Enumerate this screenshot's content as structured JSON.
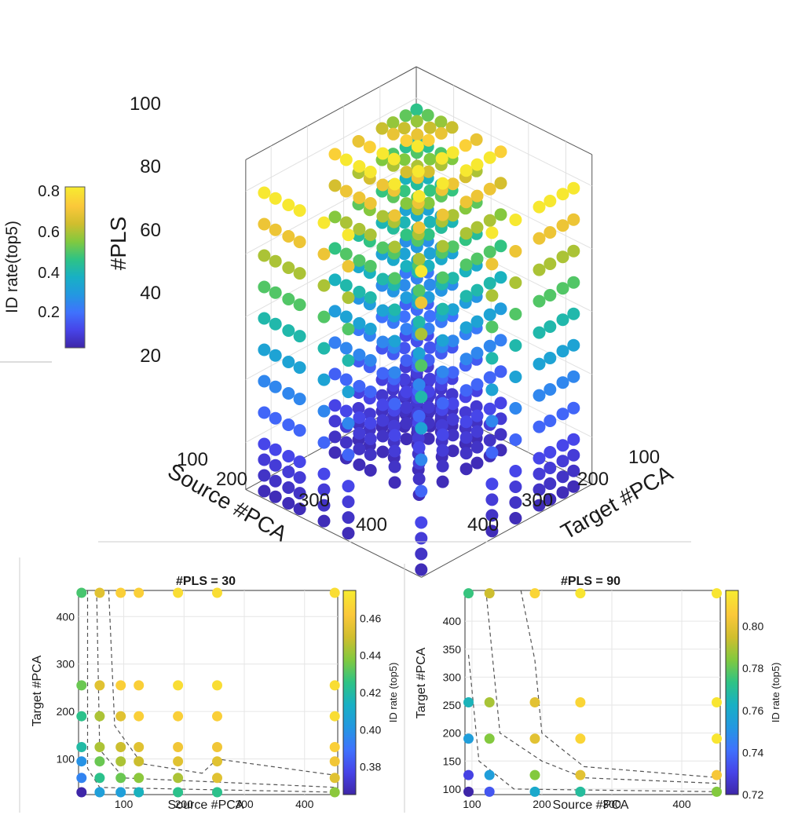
{
  "colormap": [
    "#3e26a8",
    "#4744e8",
    "#3f72fd",
    "#2398e1",
    "#18b0c4",
    "#2ec385",
    "#81c93f",
    "#d0be2e",
    "#fbc83a",
    "#f7ec2f"
  ],
  "main_3d": {
    "zlabel": "#PLS",
    "xlabel": "Source #PCA",
    "ylabel": "Target #PCA",
    "z_ticks": [
      "20",
      "40",
      "60",
      "80",
      "100"
    ],
    "x_ticks": [
      "100",
      "200",
      "300",
      "400"
    ],
    "y_ticks": [
      "100",
      "200",
      "300",
      "400"
    ],
    "colorbar": {
      "label": "ID rate(top5)",
      "ticks": [
        "0.2",
        "0.4",
        "0.6",
        "0.8"
      ]
    }
  },
  "chart_data": [
    {
      "type": "scatter",
      "title": "",
      "xlabel": "Source #PCA",
      "ylabel": "Target #PCA",
      "zlabel": "#PLS",
      "description_values": "3D scatter of ID rate(top5) over Source #PCA, Target #PCA and #PLS",
      "x_values": [
        30,
        60,
        95,
        125,
        190,
        255,
        450
      ],
      "y_values": [
        30,
        60,
        95,
        125,
        190,
        255,
        450
      ],
      "z_values": [
        5,
        10,
        15,
        20,
        30,
        40,
        50,
        60,
        70,
        80,
        90,
        100
      ],
      "colorbar": {
        "label": "ID rate(top5)",
        "range": [
          0.02,
          0.82
        ],
        "ticks": [
          0.2,
          0.4,
          0.6,
          0.8
        ]
      },
      "zlim": [
        0,
        100
      ]
    },
    {
      "type": "scatter",
      "title": "#PLS = 30",
      "xlabel": "Source #PCA",
      "ylabel": "Target #PCA",
      "x_ticks": [
        "100",
        "200",
        "300",
        "400"
      ],
      "y_ticks": [
        "100",
        "200",
        "300",
        "400"
      ],
      "xlim": [
        25,
        455
      ],
      "ylim": [
        25,
        455
      ],
      "grid": true,
      "colorbar": {
        "label": "ID rate (top5)",
        "range": [
          0.365,
          0.475
        ],
        "ticks": [
          "0.38",
          "0.40",
          "0.42",
          "0.44",
          "0.46"
        ]
      },
      "x": [
        30,
        60,
        95,
        125,
        190,
        255,
        450
      ],
      "y": [
        30,
        60,
        95,
        125,
        190,
        255,
        450
      ],
      "values": [
        [
          0.365,
          0.405,
          0.405,
          0.415,
          0.425,
          0.425,
          0.44
        ],
        [
          0.395,
          0.425,
          0.435,
          0.44,
          0.445,
          0.455,
          0.455
        ],
        [
          0.4,
          0.435,
          0.445,
          0.45,
          0.455,
          0.455,
          0.46
        ],
        [
          0.42,
          0.445,
          0.45,
          0.455,
          0.46,
          0.46,
          0.465
        ],
        [
          0.425,
          0.445,
          0.455,
          0.465,
          0.465,
          0.465,
          0.47
        ],
        [
          0.435,
          0.455,
          0.465,
          0.465,
          0.47,
          0.47,
          0.47
        ],
        [
          0.43,
          0.455,
          0.465,
          0.465,
          0.47,
          0.47,
          0.47
        ]
      ]
    },
    {
      "type": "scatter",
      "title": "#PLS = 90",
      "xlabel": "Source #PCA",
      "ylabel": "Target #PCA",
      "x_ticks": [
        "100",
        "200",
        "300",
        "400"
      ],
      "y_ticks": [
        "100",
        "150",
        "200",
        "250",
        "300",
        "350",
        "400"
      ],
      "xlim": [
        90,
        455
      ],
      "ylim": [
        90,
        455
      ],
      "grid": true,
      "colorbar": {
        "label": "ID rate (top5)",
        "range": [
          0.72,
          0.817
        ],
        "ticks": [
          "0.72",
          "0.74",
          "0.76",
          "0.78",
          "0.80"
        ]
      },
      "x": [
        95,
        125,
        190,
        255,
        450
      ],
      "y": [
        95,
        125,
        190,
        255,
        450
      ],
      "values": [
        [
          0.72,
          0.735,
          0.76,
          0.77,
          0.785
        ],
        [
          0.73,
          0.755,
          0.785,
          0.8,
          0.805
        ],
        [
          0.755,
          0.785,
          0.8,
          0.81,
          0.815
        ],
        [
          0.765,
          0.79,
          0.8,
          0.81,
          0.815
        ],
        [
          0.775,
          0.795,
          0.81,
          0.815,
          0.815
        ]
      ]
    }
  ]
}
